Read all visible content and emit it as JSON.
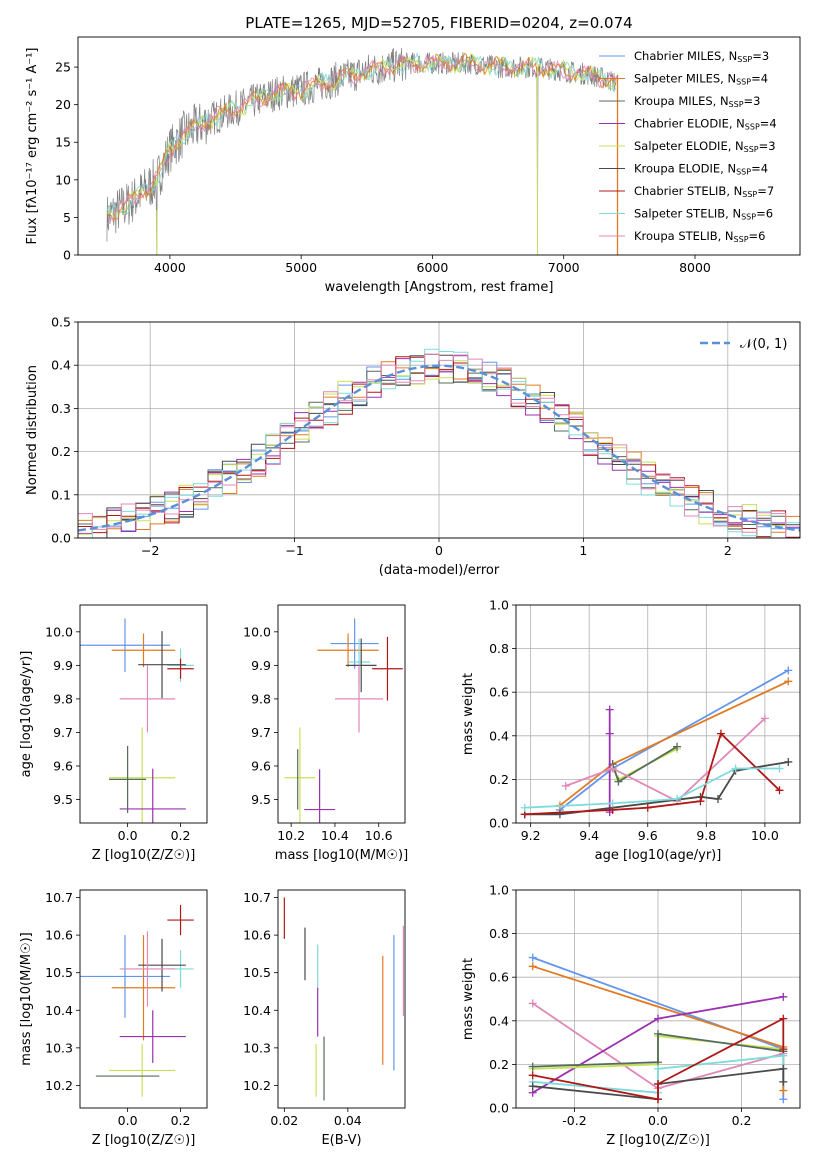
{
  "colors": {
    "blue": "#6495ed",
    "orange": "#e07b22",
    "darkgray": "#546c5c",
    "purple": "#9b30b0",
    "yellowgreen": "#c8e05a",
    "charcoal": "#4a4a4a",
    "darkred": "#b01818",
    "cyan": "#7fdbdb",
    "pink": "#e088b8",
    "normal": "#5b8fd6",
    "grid": "#b0b0b0",
    "spectrum": "#808080"
  },
  "chart_data": [
    {
      "id": "spectrum",
      "type": "line",
      "title": "PLATE=1265, MJD=52705, FIBERID=0204, z=0.074",
      "xlabel": "wavelength [Angstrom, rest frame]",
      "ylabel": "Flux [fλ10⁻¹⁷ erg cm⁻² s⁻¹ A⁻¹]",
      "xlim": [
        3300,
        8800
      ],
      "ylim": [
        0,
        29
      ],
      "xticks": [
        4000,
        5000,
        6000,
        7000,
        8000
      ],
      "yticks": [
        0,
        5,
        10,
        15,
        20,
        25
      ],
      "grid": false,
      "legend": "upper right",
      "legend_entries": [
        {
          "label": "Chabrier MILES, N_SSP=3",
          "color": "#6495ed"
        },
        {
          "label": "Salpeter MILES, N_SSP=4",
          "color": "#e07b22"
        },
        {
          "label": "Kroupa MILES, N_SSP=3",
          "color": "#546c5c"
        },
        {
          "label": "Chabrier ELODIE, N_SSP=4",
          "color": "#9b30b0"
        },
        {
          "label": "Salpeter ELODIE, N_SSP=3",
          "color": "#c8e05a"
        },
        {
          "label": "Kroupa ELODIE, N_SSP=4",
          "color": "#4a4a4a"
        },
        {
          "label": "Chabrier STELIB, N_SSP=7",
          "color": "#b01818"
        },
        {
          "label": "Salpeter STELIB, N_SSP=6",
          "color": "#7fdbdb"
        },
        {
          "label": "Kroupa STELIB, N_SSP=6",
          "color": "#e088b8"
        }
      ],
      "continuum": {
        "x": [
          3520,
          3700,
          3900,
          4000,
          4100,
          4300,
          4500,
          4800,
          5000,
          5200,
          5500,
          5800,
          6000,
          6300,
          6500,
          6800,
          7000,
          7200,
          7300,
          7400
        ],
        "y": [
          5,
          7,
          10,
          14,
          16,
          18,
          19.5,
          21.5,
          22,
          23,
          24.5,
          25.5,
          25.5,
          25.5,
          25,
          25,
          24.5,
          24,
          23.5,
          23
        ]
      },
      "dips": [
        {
          "x": 3900,
          "y": 0
        },
        {
          "x": 6800,
          "y": 0
        },
        {
          "x": 7410,
          "y": 0
        }
      ]
    },
    {
      "id": "residuals",
      "type": "histogram",
      "xlabel": "(data-model)/error",
      "ylabel": "Normed distribution",
      "xlim": [
        -2.5,
        2.5
      ],
      "ylim": [
        0,
        0.5
      ],
      "xticks": [
        -2,
        -1,
        0,
        1,
        2
      ],
      "yticks": [
        0.0,
        0.1,
        0.2,
        0.3,
        0.4,
        0.5
      ],
      "grid": true,
      "legend": "upper right",
      "normal_label": "𝒩(0, 1)",
      "bin_width": 0.1
    },
    {
      "id": "age_vs_Z",
      "type": "errorbar",
      "xlabel": "Z [log10(Z/Z☉)]",
      "ylabel": "age  [log10(age/yr)]",
      "xlim": [
        -0.18,
        0.3
      ],
      "ylim": [
        9.43,
        10.08
      ],
      "xticks": [
        0.0,
        0.2
      ],
      "yticks": [
        9.5,
        9.6,
        9.7,
        9.8,
        9.9,
        10.0
      ],
      "points": [
        {
          "color": "#6495ed",
          "x": -0.01,
          "xe": 0.17,
          "y": 9.96,
          "ye": 0.08
        },
        {
          "color": "#e07b22",
          "x": 0.06,
          "xe": 0.12,
          "y": 9.945,
          "ye": 0.05
        },
        {
          "color": "#7fdbdb",
          "x": 0.2,
          "xe": 0.05,
          "y": 9.9,
          "ye": 0.05
        },
        {
          "color": "#4a4a4a",
          "x": 0.13,
          "xe": 0.09,
          "y": 9.902,
          "ye": 0.1
        },
        {
          "color": "#b01818",
          "x": 0.2,
          "xe": 0.05,
          "y": 9.89,
          "ye": 0.03
        },
        {
          "color": "#e088b8",
          "x": 0.075,
          "xe": 0.105,
          "y": 9.8,
          "ye": 0.1
        },
        {
          "color": "#c8e05a",
          "x": 0.055,
          "xe": 0.125,
          "y": 9.565,
          "ye": 0.15
        },
        {
          "color": "#9b30b0",
          "x": 0.095,
          "xe": 0.125,
          "y": 9.472,
          "ye": 0.12
        },
        {
          "color": "#546c5c",
          "x": 0.0,
          "xe": 0.07,
          "y": 9.56,
          "ye": 0.1
        }
      ]
    },
    {
      "id": "age_vs_mass",
      "type": "errorbar",
      "xlabel": "mass [log10(M/M☉)]",
      "ylabel": "",
      "xlim": [
        10.14,
        10.72
      ],
      "ylim": [
        9.43,
        10.08
      ],
      "xticks": [
        10.2,
        10.4,
        10.6
      ],
      "yticks": [
        9.5,
        9.6,
        9.7,
        9.8,
        9.9,
        10.0
      ],
      "points": [
        {
          "color": "#6495ed",
          "x": 10.49,
          "xe": 0.11,
          "y": 9.965,
          "ye": 0.075
        },
        {
          "color": "#e07b22",
          "x": 10.46,
          "xe": 0.14,
          "y": 9.945,
          "ye": 0.05
        },
        {
          "color": "#7fdbdb",
          "x": 10.51,
          "xe": 0.05,
          "y": 9.91,
          "ye": 0.07
        },
        {
          "color": "#4a4a4a",
          "x": 10.52,
          "xe": 0.07,
          "y": 9.9,
          "ye": 0.08
        },
        {
          "color": "#b01818",
          "x": 10.64,
          "xe": 0.07,
          "y": 9.89,
          "ye": 0.095
        },
        {
          "color": "#e088b8",
          "x": 10.51,
          "xe": 0.11,
          "y": 9.8,
          "ye": 0.1
        },
        {
          "color": "#c8e05a",
          "x": 10.24,
          "xe": 0.07,
          "y": 9.565,
          "ye": 0.15
        },
        {
          "color": "#9b30b0",
          "x": 10.33,
          "xe": 0.07,
          "y": 9.47,
          "ye": 0.12
        },
        {
          "color": "#546c5c",
          "x": 10.23,
          "xe": 0.0,
          "y": 9.56,
          "ye": 0.09
        }
      ]
    },
    {
      "id": "weight_vs_age",
      "type": "line",
      "xlabel": "age  [log10(age/yr)]",
      "ylabel": "mass weight",
      "xlim": [
        9.15,
        10.12
      ],
      "ylim": [
        0,
        1
      ],
      "xticks": [
        9.2,
        9.4,
        9.6,
        9.8,
        10.0
      ],
      "yticks": [
        0.0,
        0.2,
        0.4,
        0.6,
        0.8,
        1.0
      ],
      "grid": true,
      "series": [
        {
          "color": "#6495ed",
          "x": [
            9.3,
            9.48,
            10.08
          ],
          "y": [
            0.06,
            0.25,
            0.7
          ]
        },
        {
          "color": "#e07b22",
          "x": [
            9.3,
            9.48,
            10.08
          ],
          "y": [
            0.08,
            0.27,
            0.65
          ]
        },
        {
          "color": "#c8e05a",
          "x": [
            9.48,
            9.5,
            9.7
          ],
          "y": [
            0.25,
            0.2,
            0.34
          ]
        },
        {
          "color": "#546c5c",
          "x": [
            9.48,
            9.5,
            9.7
          ],
          "y": [
            0.27,
            0.19,
            0.35
          ]
        },
        {
          "color": "#9b30b0",
          "x": [
            9.47,
            9.47,
            9.47
          ],
          "y": [
            0.52,
            0.41,
            0.05
          ]
        },
        {
          "color": "#e088b8",
          "x": [
            9.32,
            9.48,
            9.7,
            10.0
          ],
          "y": [
            0.17,
            0.25,
            0.1,
            0.48
          ]
        },
        {
          "color": "#4a4a4a",
          "x": [
            9.18,
            9.3,
            9.78,
            9.84,
            9.9,
            10.08
          ],
          "y": [
            0.04,
            0.04,
            0.12,
            0.11,
            0.24,
            0.28
          ]
        },
        {
          "color": "#b01818",
          "x": [
            9.18,
            9.48,
            9.6,
            9.78,
            9.85,
            10.05
          ],
          "y": [
            0.04,
            0.06,
            0.07,
            0.1,
            0.41,
            0.15
          ]
        },
        {
          "color": "#7fdbdb",
          "x": [
            9.18,
            9.48,
            9.7,
            9.9,
            10.05
          ],
          "y": [
            0.07,
            0.09,
            0.11,
            0.25,
            0.25
          ]
        }
      ]
    },
    {
      "id": "mass_vs_Z",
      "type": "errorbar",
      "xlabel": "Z [log10(Z/Z☉)]",
      "ylabel": "mass [log10(M/M☉)]",
      "xlim": [
        -0.18,
        0.3
      ],
      "ylim": [
        10.14,
        10.72
      ],
      "xticks": [
        0.0,
        0.2
      ],
      "yticks": [
        10.2,
        10.3,
        10.4,
        10.5,
        10.6,
        10.7
      ],
      "points": [
        {
          "color": "#6495ed",
          "x": -0.01,
          "xe": 0.17,
          "y": 10.49,
          "ye": 0.11
        },
        {
          "color": "#e07b22",
          "x": 0.06,
          "xe": 0.12,
          "y": 10.46,
          "ye": 0.14
        },
        {
          "color": "#7fdbdb",
          "x": 0.2,
          "xe": 0.05,
          "y": 10.51,
          "ye": 0.05
        },
        {
          "color": "#4a4a4a",
          "x": 0.13,
          "xe": 0.09,
          "y": 10.52,
          "ye": 0.07
        },
        {
          "color": "#b01818",
          "x": 0.2,
          "xe": 0.05,
          "y": 10.64,
          "ye": 0.04
        },
        {
          "color": "#e088b8",
          "x": 0.075,
          "xe": 0.105,
          "y": 10.51,
          "ye": 0.1
        },
        {
          "color": "#c8e05a",
          "x": 0.055,
          "xe": 0.125,
          "y": 10.24,
          "ye": 0.07
        },
        {
          "color": "#9b30b0",
          "x": 0.095,
          "xe": 0.125,
          "y": 10.33,
          "ye": 0.07
        },
        {
          "color": "#546c5c",
          "x": 0.0,
          "xe": 0.12,
          "y": 10.225,
          "ye": 0.0
        }
      ]
    },
    {
      "id": "mass_vs_ebv",
      "type": "errorbar",
      "xlabel": "E(B-V)",
      "ylabel": "",
      "xlim": [
        0.018,
        0.058
      ],
      "ylim": [
        10.14,
        10.72
      ],
      "xticks": [
        0.02,
        0.04
      ],
      "yticks": [
        10.2,
        10.3,
        10.4,
        10.5,
        10.6,
        10.7
      ],
      "points": [
        {
          "color": "#b01818",
          "x": 0.02,
          "y": 10.645,
          "ye": 0.055
        },
        {
          "color": "#4a4a4a",
          "x": 0.0265,
          "y": 10.55,
          "ye": 0.07
        },
        {
          "color": "#7fdbdb",
          "x": 0.0305,
          "y": 10.515,
          "ye": 0.06
        },
        {
          "color": "#9b30b0",
          "x": 0.0305,
          "y": 10.395,
          "ye": 0.065
        },
        {
          "color": "#c8e05a",
          "x": 0.03,
          "y": 10.24,
          "ye": 0.07
        },
        {
          "color": "#546c5c",
          "x": 0.0325,
          "y": 10.245,
          "ye": 0.085
        },
        {
          "color": "#e07b22",
          "x": 0.051,
          "y": 10.4,
          "ye": 0.145
        },
        {
          "color": "#6495ed",
          "x": 0.0545,
          "y": 10.42,
          "ye": 0.18
        },
        {
          "color": "#e088b8",
          "x": 0.0575,
          "y": 10.505,
          "ye": 0.12
        }
      ]
    },
    {
      "id": "weight_vs_Z",
      "type": "line",
      "xlabel": "Z [log10(Z/Z☉)]",
      "ylabel": "mass weight",
      "xlim": [
        -0.34,
        0.34
      ],
      "ylim": [
        0,
        1
      ],
      "xticks": [
        -0.2,
        0.0,
        0.2
      ],
      "yticks": [
        0.0,
        0.2,
        0.4,
        0.6,
        0.8,
        1.0
      ],
      "grid": true,
      "series": [
        {
          "color": "#6495ed",
          "x": [
            -0.3,
            0.3,
            0.3
          ],
          "y": [
            0.69,
            0.27,
            0.04
          ]
        },
        {
          "color": "#e07b22",
          "x": [
            -0.3,
            0.3,
            0.3
          ],
          "y": [
            0.65,
            0.28,
            0.08
          ]
        },
        {
          "color": "#e088b8",
          "x": [
            -0.3,
            0.0,
            0.3
          ],
          "y": [
            0.48,
            0.09,
            0.25
          ]
        },
        {
          "color": "#9b30b0",
          "x": [
            -0.3,
            0.0,
            0.3
          ],
          "y": [
            0.07,
            0.41,
            0.51
          ]
        },
        {
          "color": "#c8e05a",
          "x": [
            -0.3,
            0.0,
            0.0,
            0.3
          ],
          "y": [
            0.18,
            0.2,
            0.33,
            0.27
          ]
        },
        {
          "color": "#546c5c",
          "x": [
            -0.3,
            0.0,
            0.0,
            0.3
          ],
          "y": [
            0.19,
            0.21,
            0.34,
            0.26
          ]
        },
        {
          "color": "#7fdbdb",
          "x": [
            -0.3,
            0.0,
            0.0,
            0.3,
            0.3
          ],
          "y": [
            0.12,
            0.07,
            0.18,
            0.24,
            0.12
          ]
        },
        {
          "color": "#4a4a4a",
          "x": [
            -0.3,
            0.0,
            0.0,
            0.3,
            0.3
          ],
          "y": [
            0.1,
            0.04,
            0.11,
            0.18,
            0.12
          ]
        },
        {
          "color": "#b01818",
          "x": [
            -0.3,
            0.0,
            0.0,
            0.3,
            0.3
          ],
          "y": [
            0.15,
            0.04,
            0.11,
            0.41,
            0.27
          ]
        }
      ]
    }
  ]
}
